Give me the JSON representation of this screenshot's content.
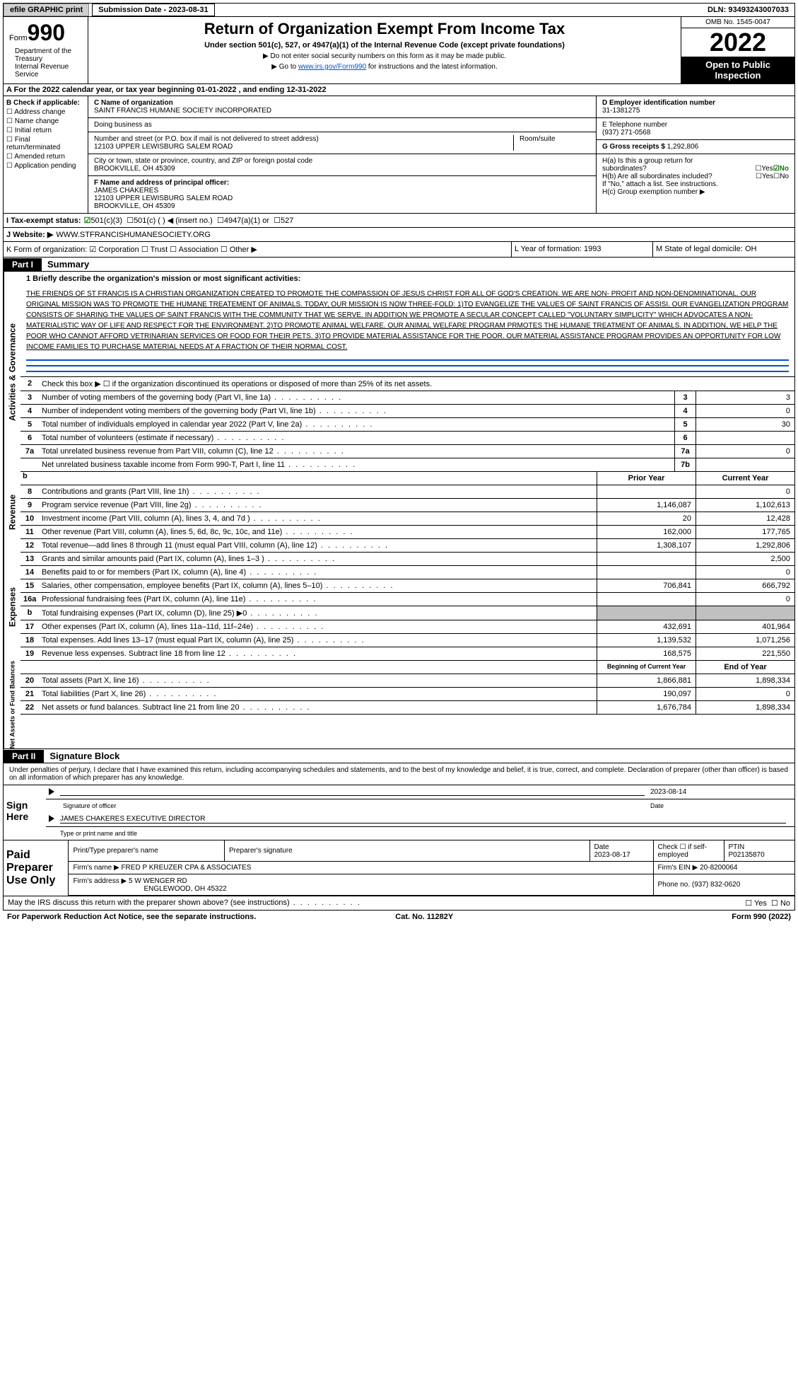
{
  "header": {
    "efile": "efile GRAPHIC print",
    "submission": "Submission Date - 2023-08-31",
    "dln": "DLN: 93493243007033"
  },
  "title": {
    "form_prefix": "Form",
    "form_num": "990",
    "main": "Return of Organization Exempt From Income Tax",
    "sub": "Under section 501(c), 527, or 4947(a)(1) of the Internal Revenue Code (except private foundations)",
    "note1": "▶ Do not enter social security numbers on this form as it may be made public.",
    "note2_pre": "▶ Go to ",
    "note2_link": "www.irs.gov/Form990",
    "note2_post": " for instructions and the latest information.",
    "dept": "Department of the Treasury\nInternal Revenue Service",
    "omb": "OMB No. 1545-0047",
    "year": "2022",
    "open": "Open to Public Inspection"
  },
  "lineA": "A For the 2022 calendar year, or tax year beginning 01-01-2022   , and ending 12-31-2022",
  "sectionB": {
    "title": "B Check if applicable:",
    "items": [
      "☐ Address change",
      "☐ Name change",
      "☐ Initial return",
      "☐ Final return/terminated",
      "☐ Amended return",
      "☐ Application pending"
    ]
  },
  "sectionC": {
    "label": "C Name of organization",
    "name": "SAINT FRANCIS HUMANE SOCIETY INCORPORATED",
    "dba_label": "Doing business as",
    "addr_label": "Number and street (or P.O. box if mail is not delivered to street address)",
    "addr": "12103 UPPER LEWISBURG SALEM ROAD",
    "room_label": "Room/suite",
    "city_label": "City or town, state or province, country, and ZIP or foreign postal code",
    "city": "BROOKVILLE, OH  45309"
  },
  "sectionD": {
    "label": "D Employer identification number",
    "val": "31-1381275"
  },
  "sectionE": {
    "label": "E Telephone number",
    "val": "(937) 271-0568"
  },
  "sectionG": {
    "label": "G Gross receipts $",
    "val": "1,292,806"
  },
  "sectionF": {
    "label": "F  Name and address of principal officer:",
    "name": "JAMES CHAKERES",
    "addr1": "12103 UPPER LEWISBURG SALEM ROAD",
    "addr2": "BROOKVILLE, OH  45309"
  },
  "sectionH": {
    "a": "H(a)  Is this a group return for",
    "a2": "subordinates?",
    "b": "H(b)  Are all subordinates included?",
    "b2": "If \"No,\" attach a list. See instructions.",
    "c": "H(c)  Group exemption number ▶"
  },
  "lineI": {
    "label": "I  Tax-exempt status:",
    "opts": [
      "501(c)(3)",
      "501(c) (  ) ◀ (insert no.)",
      "4947(a)(1) or",
      "527"
    ]
  },
  "lineJ": {
    "label": "J  Website: ▶",
    "val": " WWW.STFRANCISHUMANESOCIETY.ORG"
  },
  "lineK": "K Form of organization:  ☑ Corporation ☐ Trust ☐ Association ☐ Other ▶",
  "lineL": "L Year of formation: 1993",
  "lineM": "M State of legal domicile: OH",
  "part1": {
    "label": "Part I",
    "title": "Summary",
    "vert1": "Activities & Governance",
    "line1_label": "1  Briefly describe the organization's mission or most significant activities:",
    "mission": "THE FRIENDS OF ST FRANCIS IS A CHRISTIAN ORGANIZATION CREATED TO PROMOTE THE COMPASSION OF JESUS CHRIST FOR ALL OF GOD'S CREATION. WE ARE NON- PROFIT AND NON-DENOMINATIONAL. OUR ORIGINAL MISSION WAS TO PROMOTE THE HUMANE TREATEMENT OF ANIMALS. TODAY, OUR MISSION IS NOW THREE-FOLD: 1)TO EVANGELIZE THE VALUES OF SAINT FRANCIS OF ASSISI. OUR EVANGELIZATION PROGRAM CONSISTS OF SHARING THE VALUES OF SAINT FRANCIS WITH THE COMMUNITY THAT WE SERVE. IN ADDITION WE PROMOTE A SECULAR CONCEPT CALLED \"VOLUNTARY SIMPLICITY\" WHICH ADVOCATES A NON-MATERIALISTIC WAY OF LIFE AND RESPECT FOR THE ENVIRONMENT. 2)TO PROMOTE ANIMAL WELFARE. OUR ANIMAL WELFARE PROGRAM PRMOTES THE HUMANE TREATMENT OF ANIMALS. IN ADDITION, WE HELP THE POOR WHO CANNOT AFFORD VETRINARIAN SERVICES OR FOOD FOR THEIR PETS. 3)TO PROVIDE MATERIAL ASSISTANCE FOR THE POOR. OUR MATERIAL ASSISTANCE PROGRAM PROVIDES AN OPPORTUNITY FOR LOW INCOME FAMILIES TO PURCHASE MATERIAL NEEDS AT A FRACTION OF THEIR NORMAL COST.",
    "line2": "Check this box ▶ ☐  if the organization discontinued its operations or disposed of more than 25% of its net assets.",
    "rows_gov": [
      {
        "n": "3",
        "d": "Number of voting members of the governing body (Part VI, line 1a)",
        "b": "3",
        "v": "3"
      },
      {
        "n": "4",
        "d": "Number of independent voting members of the governing body (Part VI, line 1b)",
        "b": "4",
        "v": "0"
      },
      {
        "n": "5",
        "d": "Total number of individuals employed in calendar year 2022 (Part V, line 2a)",
        "b": "5",
        "v": "30"
      },
      {
        "n": "6",
        "d": "Total number of volunteers (estimate if necessary)",
        "b": "6",
        "v": ""
      },
      {
        "n": "7a",
        "d": "Total unrelated business revenue from Part VIII, column (C), line 12",
        "b": "7a",
        "v": "0"
      },
      {
        "n": "",
        "d": "Net unrelated business taxable income from Form 990-T, Part I, line 11",
        "b": "7b",
        "v": ""
      }
    ],
    "col_prior": "Prior Year",
    "col_curr": "Current Year",
    "vert2": "Revenue",
    "rows_rev": [
      {
        "n": "8",
        "d": "Contributions and grants (Part VIII, line 1h)",
        "p": "",
        "c": "0"
      },
      {
        "n": "9",
        "d": "Program service revenue (Part VIII, line 2g)",
        "p": "1,146,087",
        "c": "1,102,613"
      },
      {
        "n": "10",
        "d": "Investment income (Part VIII, column (A), lines 3, 4, and 7d )",
        "p": "20",
        "c": "12,428"
      },
      {
        "n": "11",
        "d": "Other revenue (Part VIII, column (A), lines 5, 6d, 8c, 9c, 10c, and 11e)",
        "p": "162,000",
        "c": "177,765"
      },
      {
        "n": "12",
        "d": "Total revenue—add lines 8 through 11 (must equal Part VIII, column (A), line 12)",
        "p": "1,308,107",
        "c": "1,292,806"
      }
    ],
    "vert3": "Expenses",
    "rows_exp": [
      {
        "n": "13",
        "d": "Grants and similar amounts paid (Part IX, column (A), lines 1–3 )",
        "p": "",
        "c": "2,500"
      },
      {
        "n": "14",
        "d": "Benefits paid to or for members (Part IX, column (A), line 4)",
        "p": "",
        "c": "0"
      },
      {
        "n": "15",
        "d": "Salaries, other compensation, employee benefits (Part IX, column (A), lines 5–10)",
        "p": "706,841",
        "c": "666,792"
      },
      {
        "n": "16a",
        "d": "Professional fundraising fees (Part IX, column (A), line 11e)",
        "p": "",
        "c": "0"
      },
      {
        "n": "b",
        "d": "Total fundraising expenses (Part IX, column (D), line 25) ▶0",
        "p": "grey",
        "c": "grey"
      },
      {
        "n": "17",
        "d": "Other expenses (Part IX, column (A), lines 11a–11d, 11f–24e)",
        "p": "432,691",
        "c": "401,964"
      },
      {
        "n": "18",
        "d": "Total expenses. Add lines 13–17 (must equal Part IX, column (A), line 25)",
        "p": "1,139,532",
        "c": "1,071,256"
      },
      {
        "n": "19",
        "d": "Revenue less expenses. Subtract line 18 from line 12",
        "p": "168,575",
        "c": "221,550"
      }
    ],
    "col_beg": "Beginning of Current Year",
    "col_end": "End of Year",
    "vert4": "Net Assets or Fund Balances",
    "rows_net": [
      {
        "n": "20",
        "d": "Total assets (Part X, line 16)",
        "p": "1,866,881",
        "c": "1,898,334"
      },
      {
        "n": "21",
        "d": "Total liabilities (Part X, line 26)",
        "p": "190,097",
        "c": "0"
      },
      {
        "n": "22",
        "d": "Net assets or fund balances. Subtract line 21 from line 20",
        "p": "1,676,784",
        "c": "1,898,334"
      }
    ]
  },
  "part2": {
    "label": "Part II",
    "title": "Signature Block",
    "decl": "Under penalties of perjury, I declare that I have examined this return, including accompanying schedules and statements, and to the best of my knowledge and belief, it is true, correct, and complete. Declaration of preparer (other than officer) is based on all information of which preparer has any knowledge.",
    "sign_here": "Sign Here",
    "sig_officer": "Signature of officer",
    "sig_date": "2023-08-14",
    "sig_date_lbl": "Date",
    "sig_name": "JAMES CHAKERES EXECUTIVE DIRECTOR",
    "sig_name_lbl": "Type or print name and title",
    "paid": "Paid Preparer Use Only",
    "prep_name_lbl": "Print/Type preparer's name",
    "prep_sig_lbl": "Preparer's signature",
    "prep_date_lbl": "Date",
    "prep_date": "2023-08-17",
    "prep_check": "Check ☐ if self-employed",
    "ptin_lbl": "PTIN",
    "ptin": "P02135870",
    "firm_name_lbl": "Firm's name    ▶",
    "firm_name": "FRED P KREUZER CPA & ASSOCIATES",
    "firm_ein_lbl": "Firm's EIN ▶",
    "firm_ein": "20-8200064",
    "firm_addr_lbl": "Firm's address ▶",
    "firm_addr1": "5 W WENGER RD",
    "firm_addr2": "ENGLEWOOD, OH  45322",
    "phone_lbl": "Phone no.",
    "phone": "(937) 832-0620",
    "discuss": "May the IRS discuss this return with the preparer shown above? (see instructions)",
    "yes": "Yes",
    "no": "No"
  },
  "footer": {
    "paperwork": "For Paperwork Reduction Act Notice, see the separate instructions.",
    "cat": "Cat. No. 11282Y",
    "form": "Form 990 (2022)"
  }
}
